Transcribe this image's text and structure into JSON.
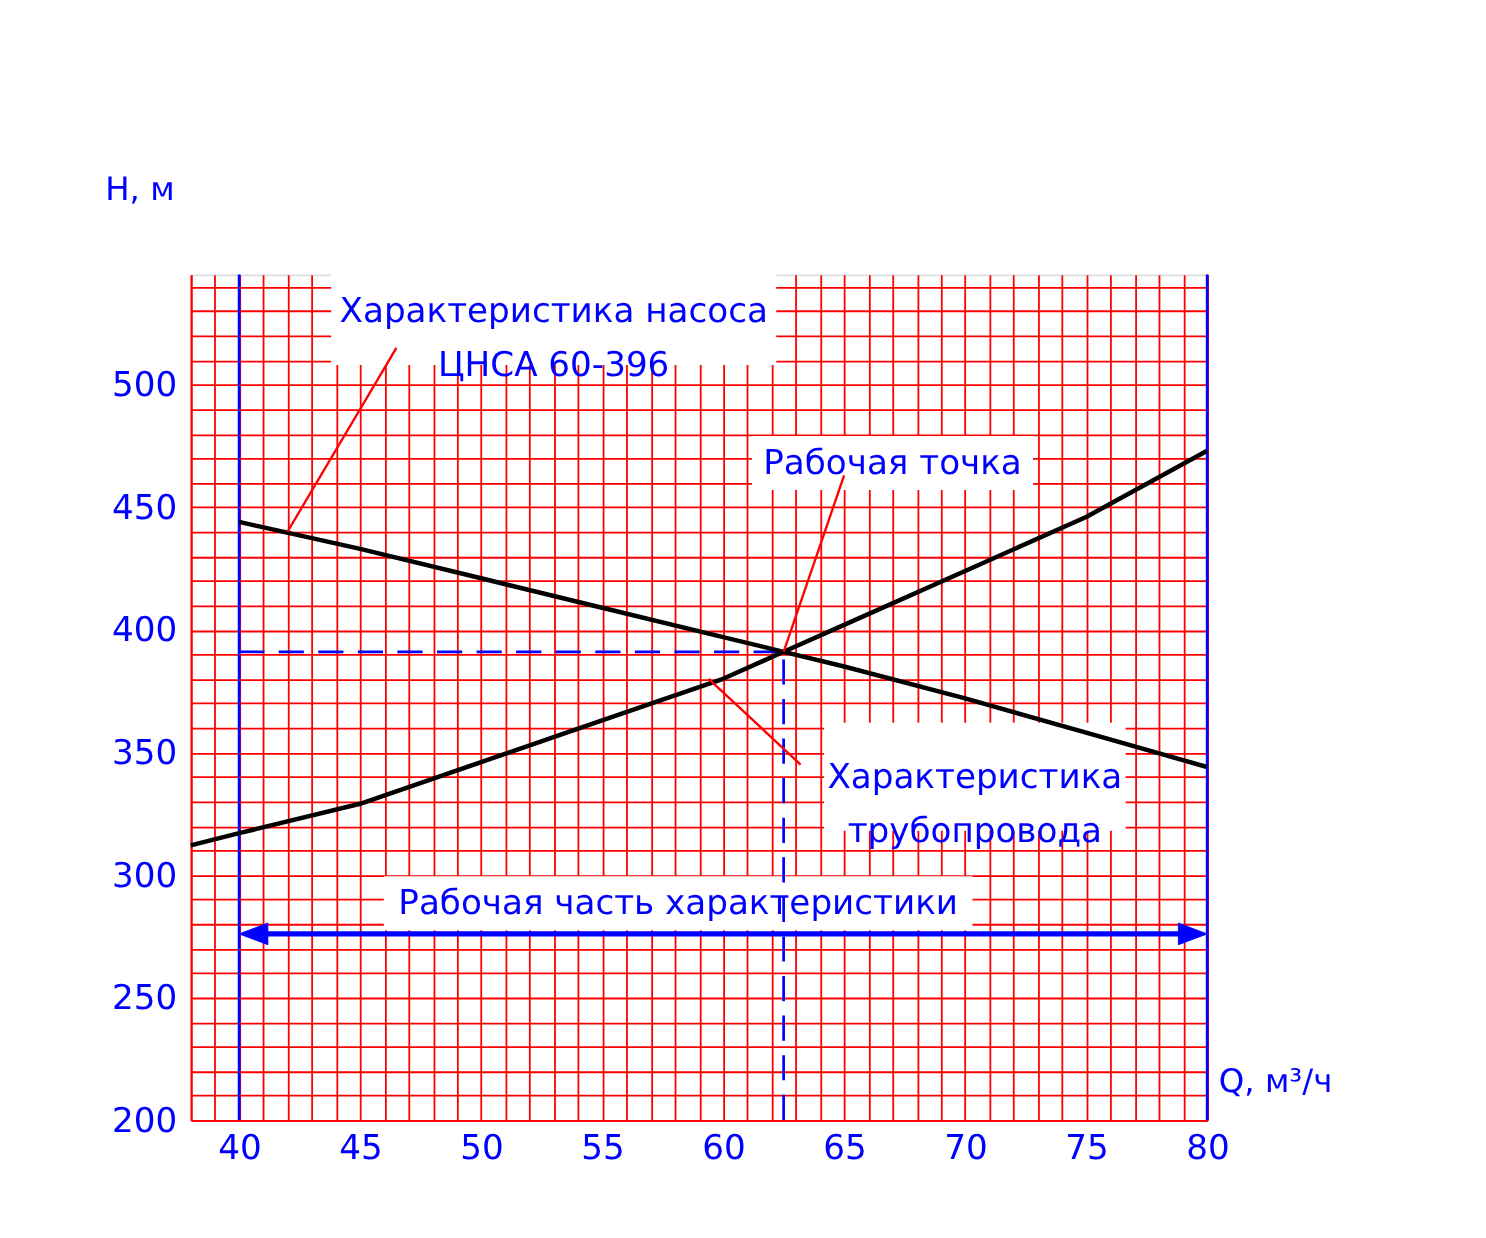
{
  "chart_data": {
    "type": "line",
    "xlabel": "Q, м³/ч",
    "ylabel": "H, м",
    "xlim": [
      38,
      80
    ],
    "ylim": [
      200,
      545
    ],
    "xticks": [
      {
        "value": 38,
        "label": null
      },
      {
        "value": 39,
        "label": null
      },
      40,
      {
        "value": 41,
        "label": null
      },
      {
        "value": 42,
        "label": null
      },
      {
        "value": 43,
        "label": null
      },
      {
        "value": 44,
        "label": null
      },
      45,
      {
        "value": 46,
        "label": null
      },
      {
        "value": 47,
        "label": null
      },
      {
        "value": 48,
        "label": null
      },
      {
        "value": 49,
        "label": null
      },
      50,
      {
        "value": 51,
        "label": null
      },
      {
        "value": 52,
        "label": null
      },
      {
        "value": 53,
        "label": null
      },
      {
        "value": 54,
        "label": null
      },
      55,
      {
        "value": 56,
        "label": null
      },
      {
        "value": 57,
        "label": null
      },
      {
        "value": 58,
        "label": null
      },
      {
        "value": 59,
        "label": null
      },
      60,
      {
        "value": 61,
        "label": null
      },
      {
        "value": 62,
        "label": null
      },
      {
        "value": 63,
        "label": null
      },
      {
        "value": 64,
        "label": null
      },
      65,
      {
        "value": 66,
        "label": null
      },
      {
        "value": 67,
        "label": null
      },
      {
        "value": 68,
        "label": null
      },
      {
        "value": 69,
        "label": null
      },
      70,
      {
        "value": 71,
        "label": null
      },
      {
        "value": 72,
        "label": null
      },
      {
        "value": 73,
        "label": null
      },
      {
        "value": 74,
        "label": null
      },
      75,
      {
        "value": 76,
        "label": null
      },
      {
        "value": 77,
        "label": null
      },
      {
        "value": 78,
        "label": null
      },
      {
        "value": 79,
        "label": null
      },
      80
    ],
    "yticks": [
      200,
      {
        "value": 210,
        "label": null
      },
      {
        "value": 220,
        "label": null
      },
      {
        "value": 230,
        "label": null
      },
      {
        "value": 240,
        "label": null
      },
      250,
      {
        "value": 260,
        "label": null
      },
      {
        "value": 270,
        "label": null
      },
      {
        "value": 280,
        "label": null
      },
      {
        "value": 290,
        "label": null
      },
      300,
      {
        "value": 310,
        "label": null
      },
      {
        "value": 320,
        "label": null
      },
      {
        "value": 330,
        "label": null
      },
      {
        "value": 340,
        "label": null
      },
      350,
      {
        "value": 360,
        "label": null
      },
      {
        "value": 370,
        "label": null
      },
      {
        "value": 380,
        "label": null
      },
      {
        "value": 390,
        "label": null
      },
      400,
      {
        "value": 410,
        "label": null
      },
      {
        "value": 420,
        "label": null
      },
      {
        "value": 430,
        "label": null
      },
      {
        "value": 440,
        "label": null
      },
      450,
      {
        "value": 460,
        "label": null
      },
      {
        "value": 470,
        "label": null
      },
      {
        "value": 480,
        "label": null
      },
      {
        "value": 490,
        "label": null
      },
      500,
      {
        "value": 510,
        "label": null
      },
      {
        "value": 520,
        "label": null
      },
      {
        "value": 530,
        "label": null
      },
      {
        "value": 540,
        "label": null
      }
    ],
    "grid": true,
    "marker": "none",
    "line_style": "solid",
    "series": [
      {
        "color": "#000000",
        "x": [
          40,
          45,
          50,
          55,
          60,
          62.5,
          65,
          70,
          75,
          80
        ],
        "values": [
          444,
          433,
          421,
          409,
          397,
          391,
          385,
          372,
          358,
          344
        ]
      },
      {
        "color": "#000000",
        "x": [
          38,
          40,
          45,
          50,
          55,
          60,
          62.5,
          65,
          70,
          75,
          80
        ],
        "values": [
          312,
          317,
          329,
          346,
          363,
          380,
          391,
          402,
          424,
          446,
          473
        ]
      }
    ],
    "ref_lines": [
      {
        "axis": "x",
        "value": 40,
        "color": "#0000ff",
        "line_style": "solid"
      },
      {
        "axis": "x",
        "value": 80,
        "color": "#0000ff",
        "line_style": "solid"
      },
      {
        "axis": "x",
        "value": 62.5,
        "color": "#0000ff",
        "line_style": "dashed"
      },
      {
        "axis": "y",
        "value": 391,
        "color": "#0000ff",
        "line_style": "dashed"
      }
    ],
    "annotations": [
      "Рабочая часть характеристики",
      {
        "text": "Характеристика насоса\nЦНСА 60-396",
        "x": 42,
        "y": 440
      },
      {
        "text": "Рабочая точка",
        "x": 62.5,
        "y": 391
      },
      {
        "text": "Характеристика\nтрубопровода",
        "x": 59.4,
        "y": 380
      }
    ]
  }
}
